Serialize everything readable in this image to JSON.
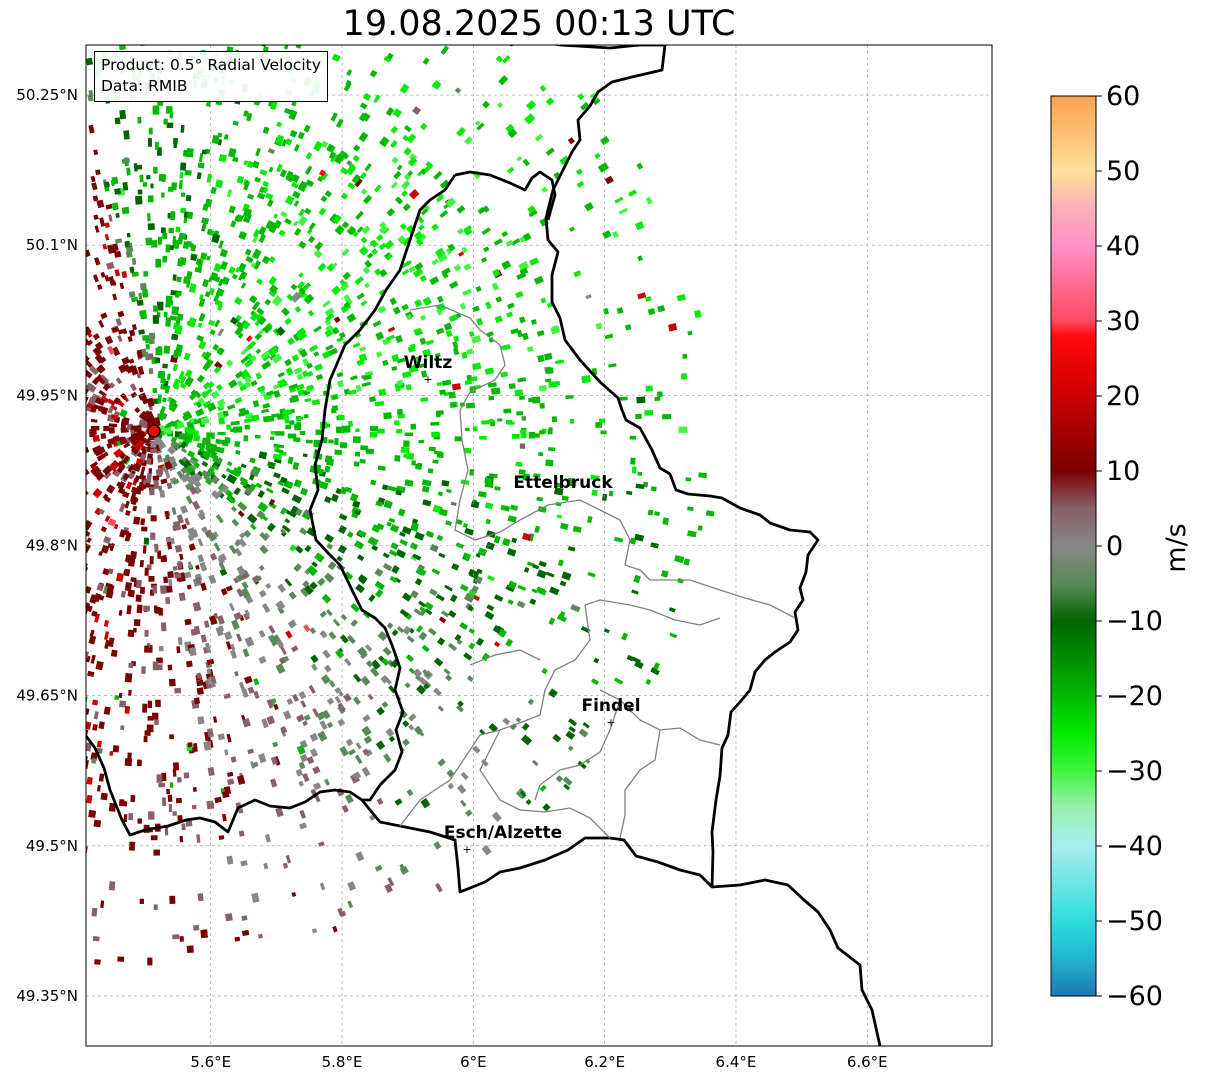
{
  "title": "19.08.2025 00:13 UTC",
  "info": {
    "product": "Product: 0.5° Radial Velocity",
    "data": "Data: RMIB"
  },
  "map": {
    "lon_range": [
      5.41,
      6.79
    ],
    "lat_range": [
      49.3,
      50.3
    ],
    "lat_ticks": [
      "50.25°N",
      "50.1°N",
      "49.95°N",
      "49.8°N",
      "49.65°N",
      "49.5°N",
      "49.35°N"
    ],
    "lon_ticks": [
      "5.6°E",
      "5.8°E",
      "6°E",
      "6.2°E",
      "6.4°E",
      "6.6°E"
    ],
    "grid": true,
    "radar_site": {
      "lon": 5.515,
      "lat": 49.915
    },
    "cities": [
      {
        "name": "Wiltz",
        "lon": 5.93,
        "lat": 49.968
      },
      {
        "name": "Ettelbruck",
        "lon": 6.1,
        "lat": 49.847
      },
      {
        "name": "Findel",
        "lon": 6.21,
        "lat": 49.627
      },
      {
        "name": "Esch/Alzette",
        "lon": 5.99,
        "lat": 49.5
      }
    ]
  },
  "colorbar": {
    "label": "m/s",
    "min": -60,
    "max": 60,
    "tick_labels": [
      "60",
      "50",
      "40",
      "30",
      "20",
      "10",
      "0",
      "−10",
      "−20",
      "−30",
      "−40",
      "−50",
      "−60"
    ],
    "tick_values": [
      60,
      50,
      40,
      30,
      20,
      10,
      0,
      -10,
      -20,
      -30,
      -40,
      -50,
      -60
    ],
    "stops": [
      {
        "v": -60,
        "c": "#1f77b4"
      },
      {
        "v": -55,
        "c": "#22b5cf"
      },
      {
        "v": -50,
        "c": "#2edcdc"
      },
      {
        "v": -40,
        "c": "#a9eef0"
      },
      {
        "v": -35,
        "c": "#9af0b0"
      },
      {
        "v": -30,
        "c": "#3ff53f"
      },
      {
        "v": -25,
        "c": "#00ea00"
      },
      {
        "v": -20,
        "c": "#00b800"
      },
      {
        "v": -10,
        "c": "#006400"
      },
      {
        "v": -5,
        "c": "#5a8a5a"
      },
      {
        "v": 0,
        "c": "#878787"
      },
      {
        "v": 5,
        "c": "#87606a"
      },
      {
        "v": 10,
        "c": "#7a0000"
      },
      {
        "v": 20,
        "c": "#cc0000"
      },
      {
        "v": 28,
        "c": "#ff0a0a"
      },
      {
        "v": 30,
        "c": "#ff4a60"
      },
      {
        "v": 40,
        "c": "#ff90c8"
      },
      {
        "v": 45,
        "c": "#ffb0b8"
      },
      {
        "v": 50,
        "c": "#ffe09a"
      },
      {
        "v": 60,
        "c": "#ffa050"
      }
    ]
  }
}
